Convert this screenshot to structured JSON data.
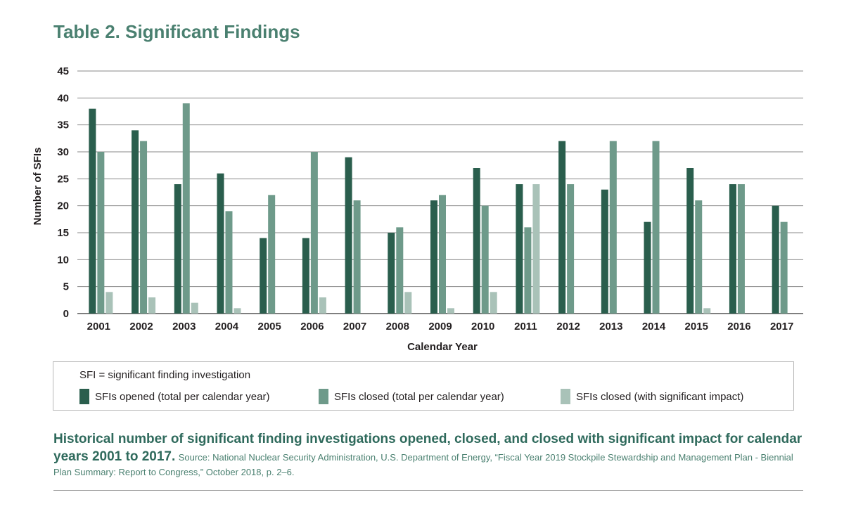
{
  "title": "Table 2. Significant Findings",
  "chart_data": {
    "type": "bar",
    "categories": [
      "2001",
      "2002",
      "2003",
      "2004",
      "2005",
      "2006",
      "2007",
      "2008",
      "2009",
      "2010",
      "2011",
      "2012",
      "2013",
      "2014",
      "2015",
      "2016",
      "2017"
    ],
    "series": [
      {
        "name": "SFIs opened (total per calendar year)",
        "color": "#2a5e4d",
        "values": [
          38,
          34,
          24,
          26,
          14,
          14,
          29,
          15,
          21,
          27,
          24,
          32,
          23,
          17,
          27,
          24,
          20
        ]
      },
      {
        "name": "SFIs closed (total per calendar year)",
        "color": "#6e9a8a",
        "values": [
          30,
          32,
          39,
          19,
          22,
          30,
          21,
          16,
          22,
          20,
          16,
          24,
          32,
          32,
          21,
          24,
          17
        ]
      },
      {
        "name": "SFIs closed (with significant impact)",
        "color": "#a9c2b8",
        "values": [
          4,
          3,
          2,
          1,
          0,
          3,
          0,
          4,
          1,
          4,
          24,
          0,
          0,
          0,
          1,
          0,
          0
        ]
      }
    ],
    "xlabel": "Calendar Year",
    "ylabel": "Number of SFIs",
    "ylim": [
      0,
      45
    ],
    "yticks": [
      0,
      5,
      10,
      15,
      20,
      25,
      30,
      35,
      40,
      45
    ],
    "grid": true,
    "legend_position": "bottom"
  },
  "legend": {
    "note": "SFI = significant finding investigation"
  },
  "caption": {
    "bold": "Historical number of significant finding investigations opened, closed, and closed with significant impact for calendar years 2001 to 2017.",
    "source": "Source: National Nuclear Security Administration, U.S. Department of Energy, “Fiscal Year 2019 Stockpile Stewardship and Management Plan - Biennial Plan Summary: Report to Congress,” October 2018, p. 2–6."
  }
}
